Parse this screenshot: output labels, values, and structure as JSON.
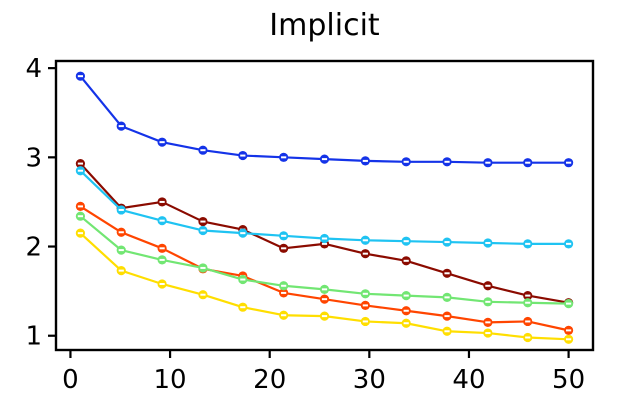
{
  "chart_data": {
    "type": "line",
    "title": "Implicit",
    "xlabel": "",
    "ylabel": "",
    "grid": false,
    "legend": "none",
    "marker": "filled-circle-with-white-horizontal-dash",
    "axis_color": "#000000",
    "background_color": "#ffffff",
    "xlim": [
      -1.45,
      52.45
    ],
    "ylim": [
      0.84,
      4.08
    ],
    "xticks": [
      0,
      10,
      20,
      30,
      40,
      50
    ],
    "yticks": [
      1,
      2,
      3,
      4
    ],
    "x": [
      1,
      5.1,
      9.2,
      13.3,
      17.3,
      21.4,
      25.5,
      29.6,
      33.7,
      37.8,
      41.9,
      45.9,
      50
    ],
    "series": [
      {
        "name": "dark-red",
        "color": "#8b0b00",
        "values": [
          2.93,
          2.43,
          2.5,
          2.28,
          2.19,
          1.98,
          2.03,
          1.92,
          1.84,
          1.7,
          1.56,
          1.45,
          1.37
        ]
      },
      {
        "name": "orange-red",
        "color": "#ff4500",
        "values": [
          2.45,
          2.16,
          1.98,
          1.75,
          1.67,
          1.48,
          1.41,
          1.34,
          1.28,
          1.22,
          1.15,
          1.16,
          1.06
        ]
      },
      {
        "name": "gold",
        "color": "#ffde00",
        "values": [
          2.15,
          1.73,
          1.58,
          1.46,
          1.32,
          1.23,
          1.22,
          1.16,
          1.14,
          1.05,
          1.03,
          0.98,
          0.96
        ]
      },
      {
        "name": "light-green",
        "color": "#72e673",
        "values": [
          2.34,
          1.96,
          1.85,
          1.76,
          1.63,
          1.56,
          1.52,
          1.47,
          1.45,
          1.43,
          1.38,
          1.37,
          1.36
        ]
      },
      {
        "name": "cyan",
        "color": "#1fc3f2",
        "values": [
          2.85,
          2.41,
          2.29,
          2.18,
          2.15,
          2.12,
          2.09,
          2.07,
          2.06,
          2.05,
          2.04,
          2.03,
          2.03
        ]
      },
      {
        "name": "blue",
        "color": "#1433e8",
        "values": [
          3.91,
          3.35,
          3.17,
          3.08,
          3.02,
          3.0,
          2.98,
          2.96,
          2.95,
          2.95,
          2.94,
          2.94,
          2.94
        ]
      }
    ]
  }
}
